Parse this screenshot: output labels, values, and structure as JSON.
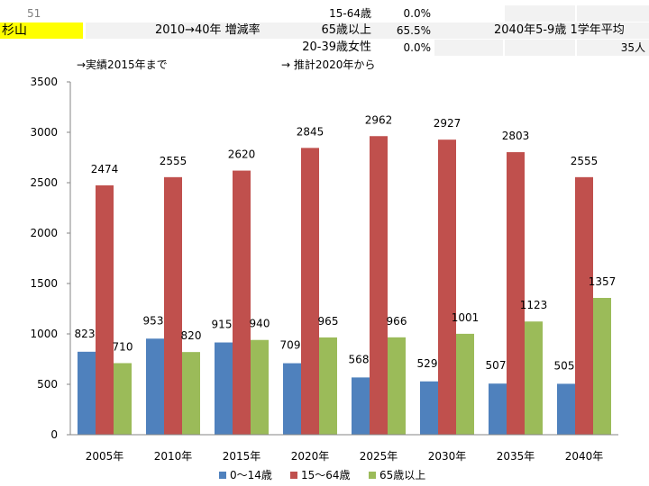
{
  "header": {
    "row_number": "51",
    "area_name": "杉山",
    "change_label": "2010→40年 増減率",
    "rows": [
      {
        "label": "15-64歳",
        "value": "0.0%"
      },
      {
        "label": "65歳以上",
        "value": "65.5%"
      },
      {
        "label": "20-39歳女性",
        "value": "0.0%"
      }
    ],
    "school_label": "2040年5-9歳 1学年平均",
    "school_value": "35人"
  },
  "notes": {
    "actual": "→実績2015年まで",
    "projected": "→ 推計2020年から"
  },
  "colors": {
    "series_0_14": "#4f81bd",
    "series_15_64": "#c0504d",
    "series_65plus": "#9bbb59",
    "highlight": "#ffff00"
  },
  "chart_data": {
    "type": "bar",
    "categories": [
      "2005年",
      "2010年",
      "2015年",
      "2020年",
      "2025年",
      "2030年",
      "2035年",
      "2040年"
    ],
    "series": [
      {
        "name": "0～14歳",
        "values": [
          823,
          953,
          915,
          709,
          568,
          529,
          507,
          505
        ]
      },
      {
        "name": "15～64歳",
        "values": [
          2474,
          2555,
          2620,
          2845,
          2962,
          2927,
          2803,
          2555
        ]
      },
      {
        "name": "65歳以上",
        "values": [
          710,
          820,
          940,
          965,
          966,
          1001,
          1123,
          1357
        ]
      }
    ],
    "yticks": [
      0,
      500,
      1000,
      1500,
      2000,
      2500,
      3000,
      3500
    ],
    "ylim": [
      0,
      3500
    ],
    "grid": false,
    "legend_position": "bottom"
  }
}
